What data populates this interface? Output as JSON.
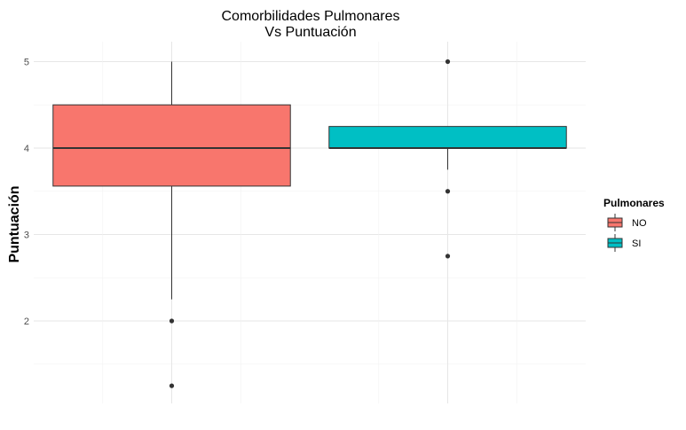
{
  "chart_data": {
    "type": "box",
    "title": [
      "Comorbilidades Pulmonares",
      "Vs Puntuación"
    ],
    "xlabel": "",
    "ylabel": "Puntuación",
    "ylim": [
      1.1,
      5.2
    ],
    "y_ticks": [
      2,
      3,
      4,
      5
    ],
    "grid": true,
    "legend": {
      "title": "Pulmonares",
      "placement": "right",
      "entries": [
        "NO",
        "SI"
      ]
    },
    "categories": [
      "NO",
      "SI"
    ],
    "series": [
      {
        "name": "NO",
        "color": "#F8766D",
        "q1": 3.56,
        "median": 4.0,
        "q3": 4.5,
        "whisker_low": 2.25,
        "whisker_high": 5.0,
        "outliers": [
          2.0,
          1.25
        ]
      },
      {
        "name": "SI",
        "color": "#00BFC4",
        "q1": 4.0,
        "median": 4.0,
        "q3": 4.25,
        "whisker_low": 3.75,
        "whisker_high": 4.25,
        "outliers": [
          5.0,
          3.5,
          2.75
        ]
      }
    ]
  }
}
